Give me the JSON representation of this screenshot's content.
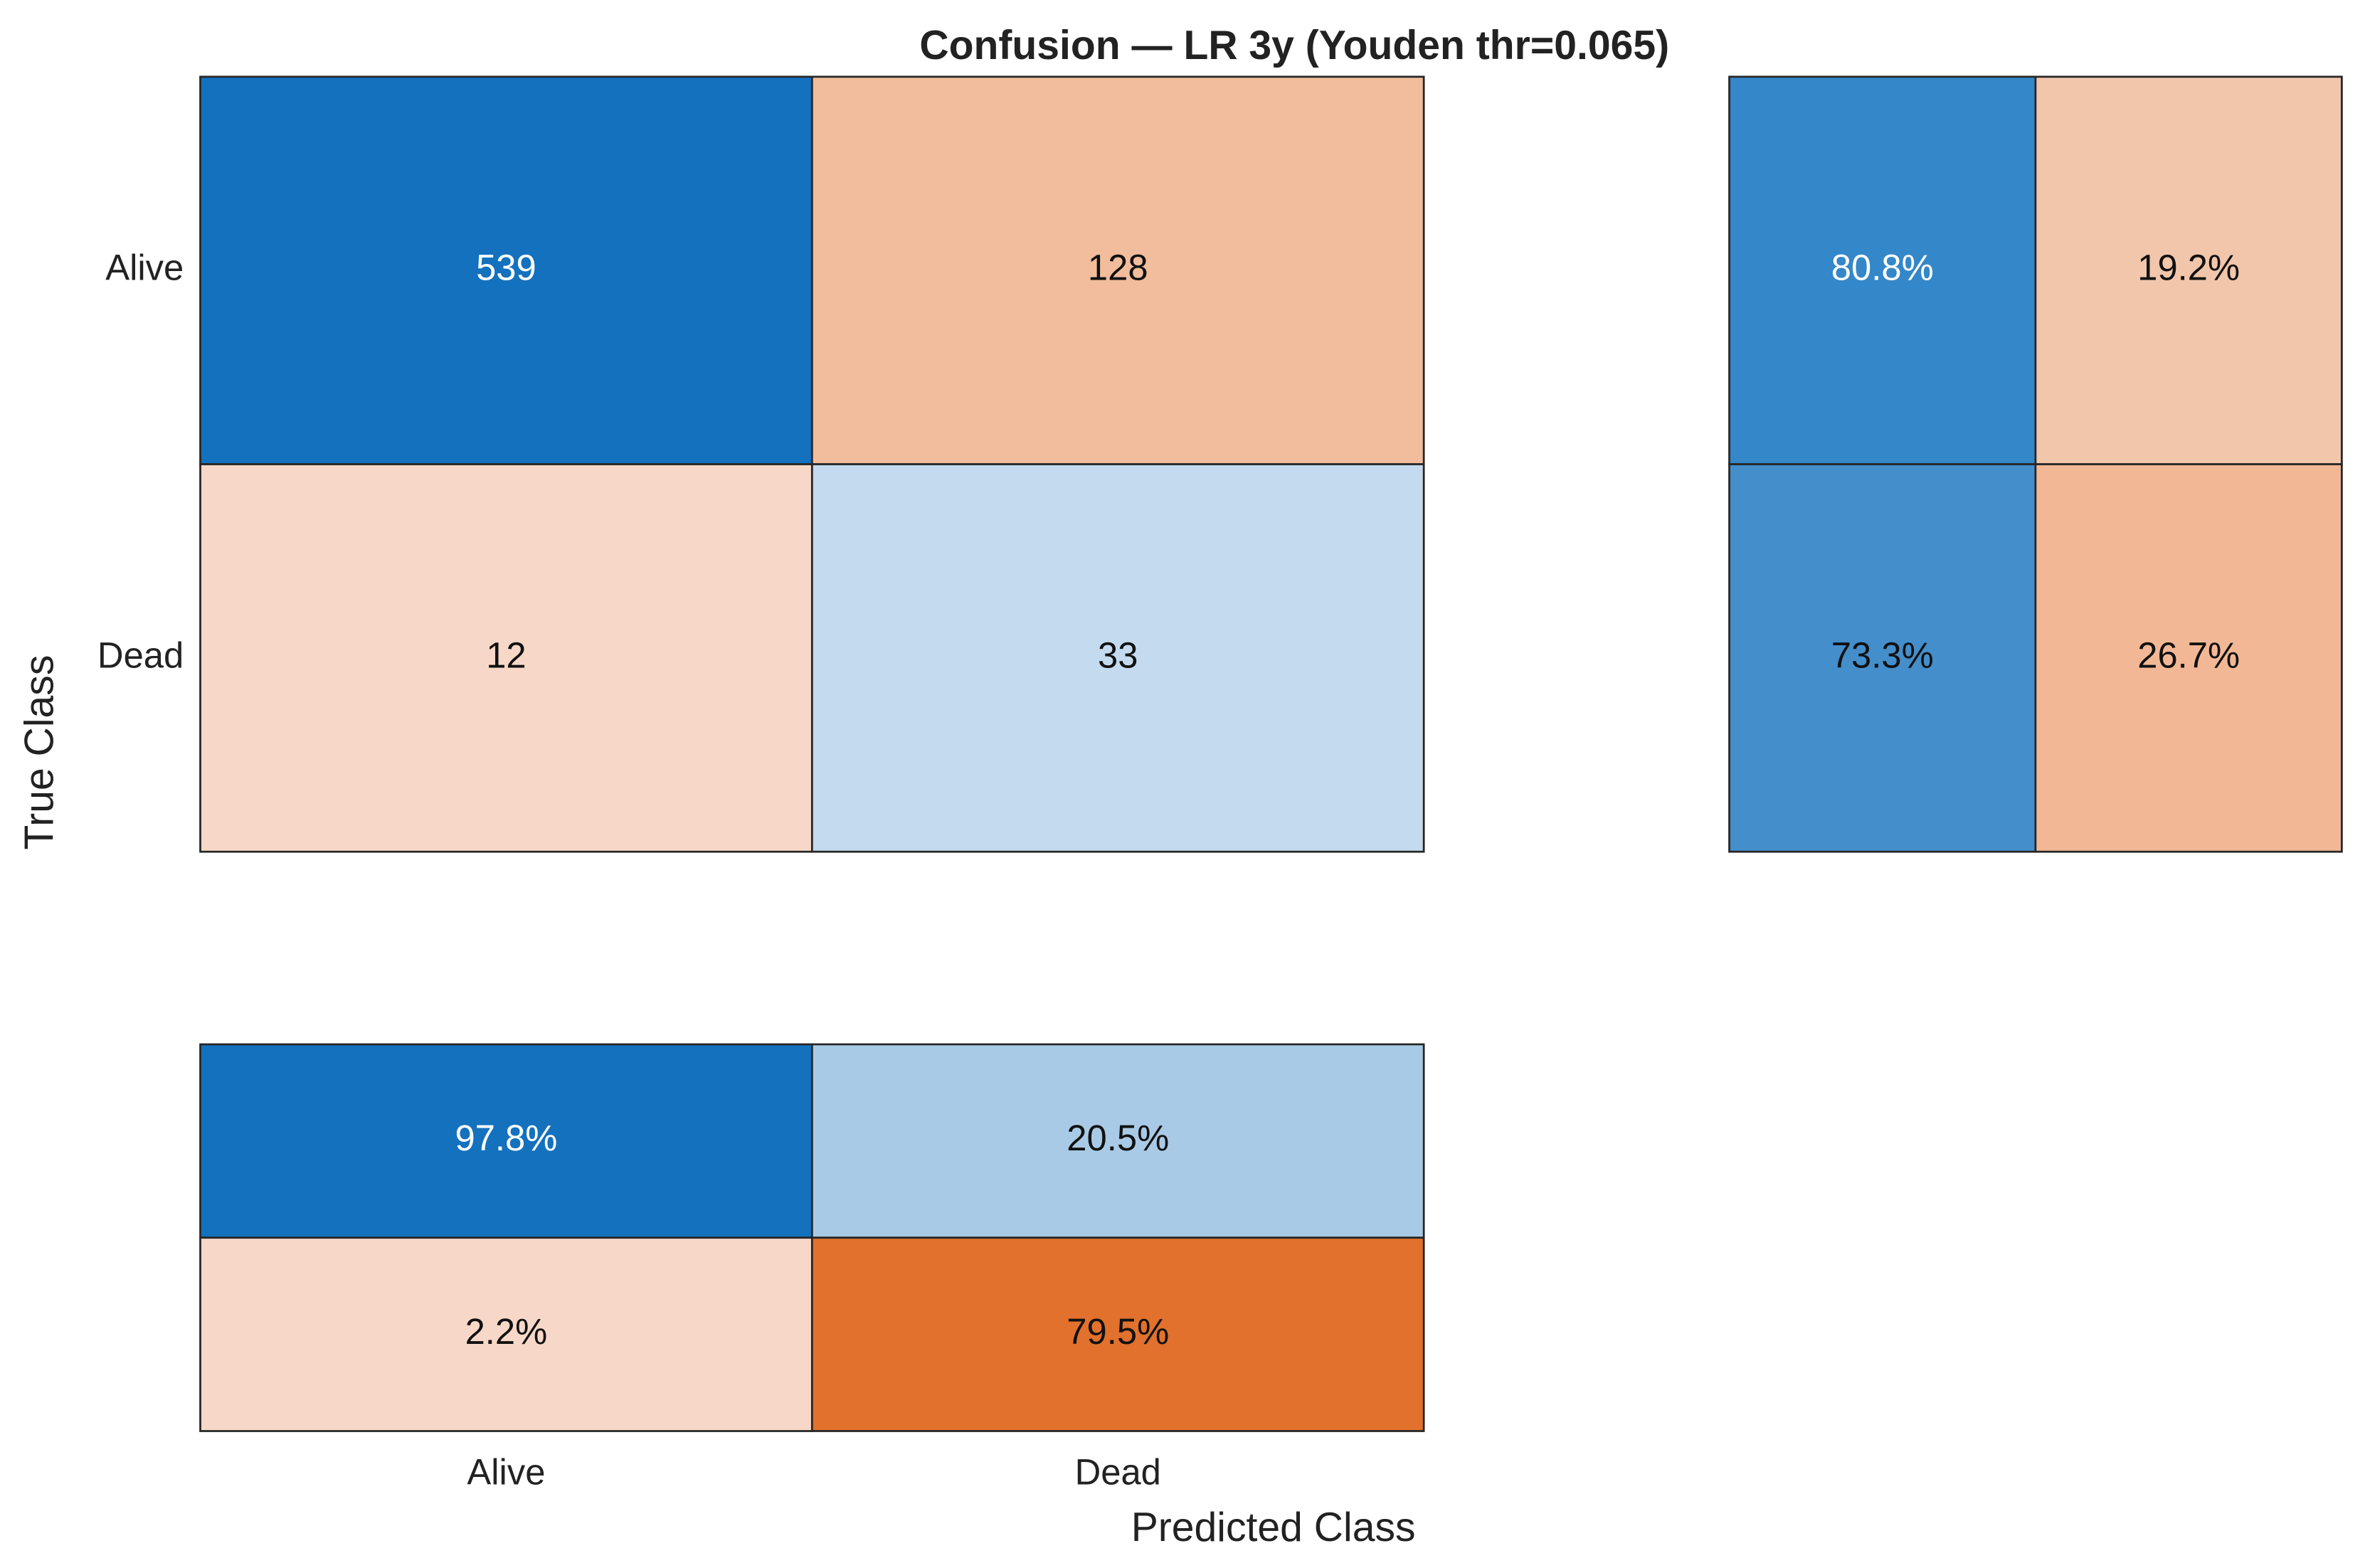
{
  "chart_data": {
    "type": "confusion",
    "title": "Confusion — LR 3y (Youden thr=0.065)",
    "xlabel": "Predicted Class",
    "ylabel": "True Class",
    "true_classes": [
      "Alive",
      "Dead"
    ],
    "predicted_classes": [
      "Alive",
      "Dead"
    ],
    "values": [
      [
        539,
        128
      ],
      [
        12,
        33
      ]
    ],
    "colors": [
      [
        "#1471be",
        "#f2bd9c"
      ],
      [
        "#f7d8c8",
        "#c4daee"
      ]
    ],
    "row_summary": {
      "values": [
        [
          80.8,
          19.2
        ],
        [
          73.3,
          26.7
        ]
      ],
      "value_labels": [
        [
          "80.8%",
          "19.2%"
        ],
        [
          "73.3%",
          "26.7%"
        ]
      ],
      "colors": [
        [
          "#3487c8",
          "#f2c6ab"
        ],
        [
          "#448ecb",
          "#f2b895"
        ]
      ]
    },
    "column_summary": {
      "values": [
        [
          97.8,
          20.5
        ],
        [
          2.2,
          79.5
        ]
      ],
      "value_labels": [
        [
          "97.8%",
          "20.5%"
        ],
        [
          "2.2%",
          "79.5%"
        ]
      ],
      "colors": [
        [
          "#1471be",
          "#a9cae6"
        ],
        [
          "#f7d8c8",
          "#e1712c"
        ]
      ]
    }
  }
}
